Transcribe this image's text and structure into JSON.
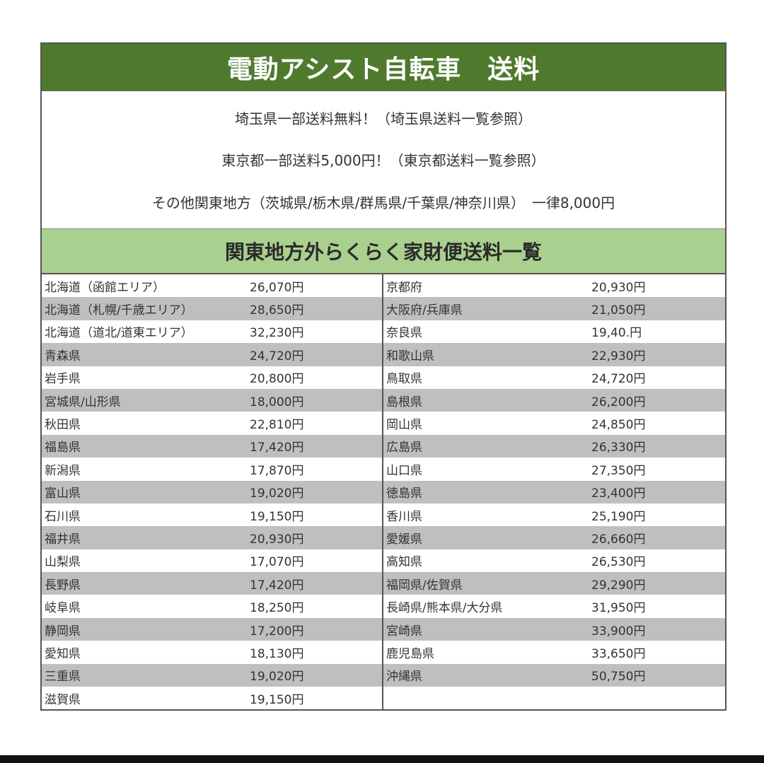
{
  "title": "電動アシスト自転車　送料",
  "info": [
    "埼玉県一部送料無料！（埼玉県送料一覧参照）",
    "東京都一部送料5,000円！（東京都送料一覧参照）",
    "その他関東地方（茨城県/栃木県/群馬県/千葉県/神奈川県）　一律8,000円"
  ],
  "subtitle": "関東地方外らくらく家財便送料一覧",
  "colors": {
    "title_bg": "#4f7a2e",
    "subtitle_bg": "#a9d08e",
    "stripe": "#bfbfbf"
  },
  "left_rows": [
    {
      "name": "北海道（函館エリア）",
      "price": "26,070円"
    },
    {
      "name": "北海道（札幌/千歳エリア）",
      "price": "28,650円"
    },
    {
      "name": "北海道（道北/道東エリア）",
      "price": "32,230円"
    },
    {
      "name": "青森県",
      "price": "24,720円"
    },
    {
      "name": "岩手県",
      "price": "20,800円"
    },
    {
      "name": "宮城県/山形県",
      "price": "18,000円"
    },
    {
      "name": "秋田県",
      "price": "22,810円"
    },
    {
      "name": "福島県",
      "price": "17,420円"
    },
    {
      "name": "新潟県",
      "price": "17,870円"
    },
    {
      "name": "富山県",
      "price": "19,020円"
    },
    {
      "name": "石川県",
      "price": "19,150円"
    },
    {
      "name": "福井県",
      "price": "20,930円"
    },
    {
      "name": "山梨県",
      "price": "17,070円"
    },
    {
      "name": "長野県",
      "price": "17,420円"
    },
    {
      "name": "岐阜県",
      "price": "18,250円"
    },
    {
      "name": "静岡県",
      "price": "17,200円"
    },
    {
      "name": "愛知県",
      "price": "18,130円"
    },
    {
      "name": "三重県",
      "price": "19,020円"
    },
    {
      "name": "滋賀県",
      "price": "19,150円"
    }
  ],
  "right_rows": [
    {
      "name": "京都府",
      "price": "20,930円"
    },
    {
      "name": "大阪府/兵庫県",
      "price": "21,050円"
    },
    {
      "name": "奈良県",
      "price": "19,40.円"
    },
    {
      "name": "和歌山県",
      "price": "22,930円"
    },
    {
      "name": "鳥取県",
      "price": "24,720円"
    },
    {
      "name": "島根県",
      "price": "26,200円"
    },
    {
      "name": "岡山県",
      "price": "24,850円"
    },
    {
      "name": "広島県",
      "price": "26,330円"
    },
    {
      "name": "山口県",
      "price": "27,350円"
    },
    {
      "name": "徳島県",
      "price": "23,400円"
    },
    {
      "name": "香川県",
      "price": "25,190円"
    },
    {
      "name": "愛媛県",
      "price": "26,660円"
    },
    {
      "name": "高知県",
      "price": "26,530円"
    },
    {
      "name": "福岡県/佐賀県",
      "price": "29,290円"
    },
    {
      "name": "長崎県/熊本県/大分県",
      "price": "31,950円"
    },
    {
      "name": "宮崎県",
      "price": "33,900円"
    },
    {
      "name": "鹿児島県",
      "price": "33,650円"
    },
    {
      "name": "沖縄県",
      "price": "50,750円"
    }
  ]
}
